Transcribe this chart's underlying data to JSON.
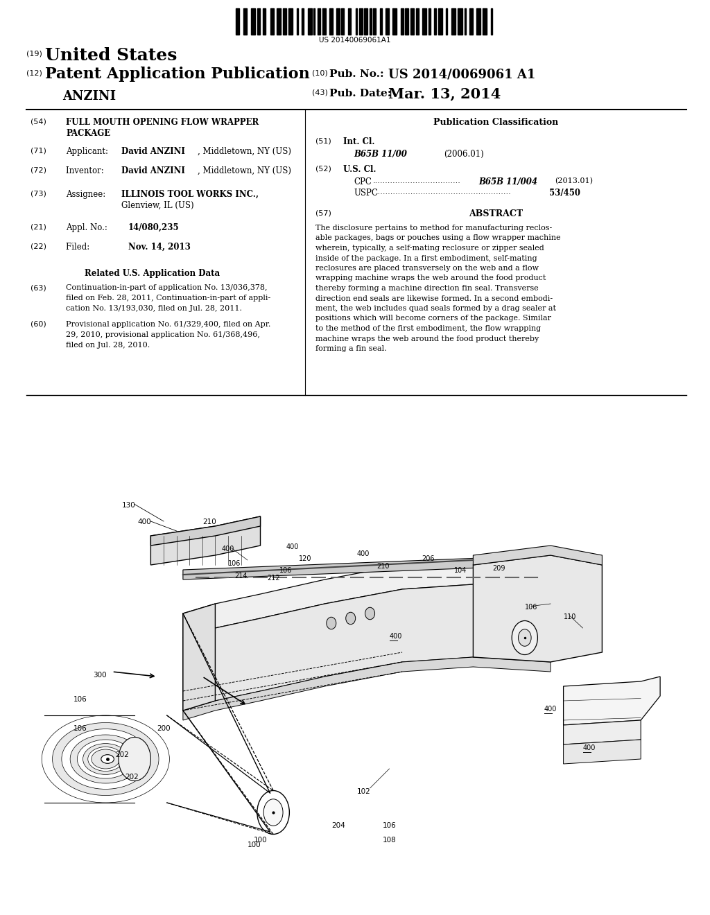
{
  "background_color": "#ffffff",
  "barcode_text": "US 20140069061A1",
  "header": {
    "number19": "(19)",
    "united_states": "United States",
    "number12": "(12)",
    "patent_app_pub": "Patent Application Publication",
    "applicant_name": "ANZINI",
    "number10": "(10)",
    "pub_no_label": "Pub. No.:",
    "pub_no_value": "US 2014/0069061 A1",
    "number43": "(43)",
    "pub_date_label": "Pub. Date:",
    "pub_date_value": "Mar. 13, 2014"
  },
  "left_col": {
    "s54_title_line1": "FULL MOUTH OPENING FLOW WRAPPER",
    "s54_title_line2": "PACKAGE",
    "s63_text_lines": [
      "Continuation-in-part of application No. 13/036,378,",
      "filed on Feb. 28, 2011, Continuation-in-part of appli-",
      "cation No. 13/193,030, filed on Jul. 28, 2011."
    ],
    "s60_text_lines": [
      "Provisional application No. 61/329,400, filed on Apr.",
      "29, 2010, provisional application No. 61/368,496,",
      "filed on Jul. 28, 2010."
    ]
  },
  "abstract_text": "The disclosure pertains to method for manufacturing reclos-able packages, bags or pouches using a flow wrapper machine wherein, typically, a self-mating reclosure or zipper sealed inside of the package. In a first embodiment, self-mating reclosures are placed transversely on the web and a flow wrapping machine wraps the web around the food product thereby forming a machine direction fin seal. Transverse direction end seals are likewise formed. In a second embodi-ment, the web includes quad seals formed by a drag sealer at positions which will become corners of the package. Similar to the method of the first embodiment, the flow wrapping machine wraps the web around the food product thereby forming a fin seal.",
  "abstract_lines": [
    "The disclosure pertains to method for manufacturing reclos-",
    "able packages, bags or pouches using a flow wrapper machine",
    "wherein, typically, a self-mating reclosure or zipper sealed",
    "inside of the package. In a first embodiment, self-mating",
    "reclosures are placed transversely on the web and a flow",
    "wrapping machine wraps the web around the food product",
    "thereby forming a machine direction fin seal. Transverse",
    "direction end seals are likewise formed. In a second embodi-",
    "ment, the web includes quad seals formed by a drag sealer at",
    "positions which will become corners of the package. Similar",
    "to the method of the first embodiment, the flow wrapping",
    "machine wraps the web around the food product thereby",
    "forming a fin seal."
  ]
}
